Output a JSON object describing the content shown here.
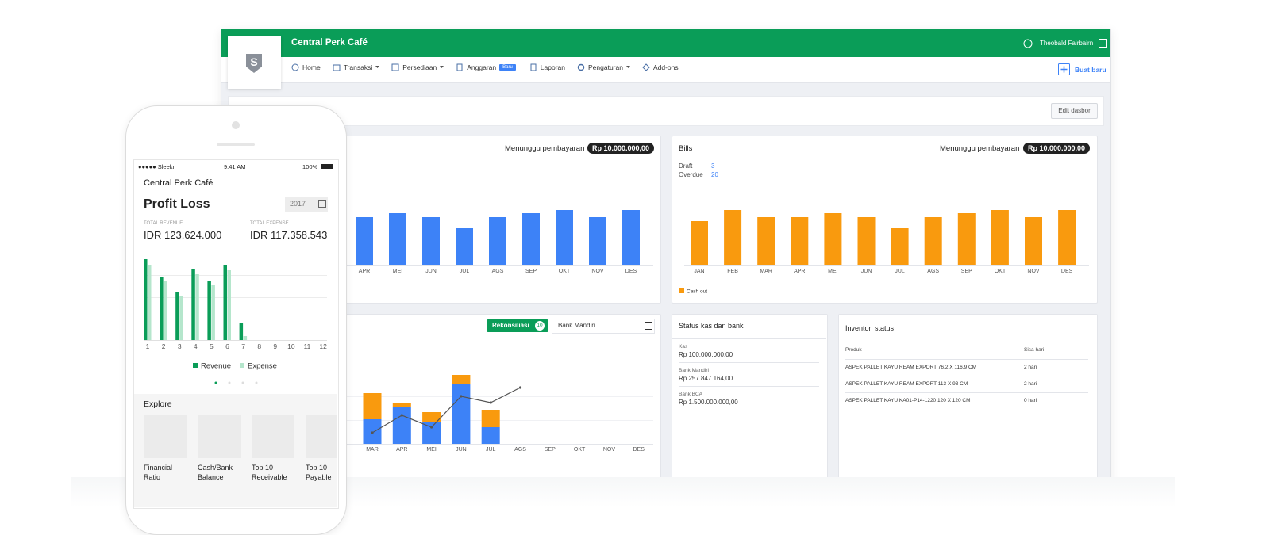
{
  "header": {
    "logo": "S",
    "title": "Central Perk Café",
    "user": "Theobald Fairbairn"
  },
  "nav": {
    "items": [
      "Home",
      "Transaksi",
      "Persediaan",
      "Anggaran",
      "Laporan",
      "Pengaturan",
      "Add-ons"
    ],
    "badge": "Baru",
    "create": "Buat baru"
  },
  "edit_button": "Edit dasbor",
  "invoices": {
    "status_label": "Menunggu pembayaran",
    "amount": "Rp 10.000.000,00"
  },
  "bills": {
    "status_label": "Menunggu pembayaran",
    "amount": "Rp 10.000.000,00",
    "summary": [
      {
        "label": "Draft",
        "value": 3
      },
      {
        "label": "Overdue",
        "value": 20
      }
    ]
  },
  "reconciliation": {
    "button": "Rekonsiliasi",
    "count": 10,
    "bank": "Bank Mandiri"
  },
  "cash_status": {
    "title": "Status kas dan bank",
    "accounts": [
      {
        "name": "Kas",
        "amount": "Rp 100.000.000,00"
      },
      {
        "name": "Bank Mandiri",
        "amount": "Rp 257.847.164,00"
      },
      {
        "name": "Bank BCA",
        "amount": "Rp 1.500.000.000,00"
      }
    ]
  },
  "inventory": {
    "title": "Inventori status",
    "columns": [
      "Produk",
      "Sisa hari"
    ],
    "rows": [
      [
        "ASPEK PALLET KAYU REAM EXPORT 76.2 X 116.9 CM",
        "2 hari"
      ],
      [
        "ASPEK PALLET KAYU REAM EXPORT 113 X 93 CM",
        "2 hari"
      ],
      [
        "ASPEK PALLET KAYU KA01-P14-1220 120 X 120 CM",
        "0 hari"
      ]
    ]
  },
  "phone": {
    "carrier": "●●●●● Sleekr",
    "time": "9:41 AM",
    "battery": "100%",
    "company": "Central Perk Café",
    "year": "2017",
    "revenue": {
      "label": "TOTAL REVENUE",
      "value": "IDR 123.624.000"
    },
    "expense": {
      "label": "TOTAL EXPENSE",
      "value": "IDR 117.358.543"
    },
    "explore": {
      "title": "Explore",
      "items": [
        "Financial Ratio",
        "Cash/Bank Balance",
        "Top 10 Receivable",
        "Top 10 Payable"
      ]
    }
  },
  "chart_data": [
    {
      "type": "bar",
      "categories": [
        "APR",
        "MEI",
        "JUN",
        "JUL",
        "AGS",
        "SEP",
        "OKT",
        "NOV",
        "DES"
      ],
      "series": [
        {
          "color": "#3d82f7",
          "values": [
            60,
            65,
            60,
            46,
            60,
            65,
            69,
            60,
            69
          ]
        }
      ]
    },
    {
      "type": "bar",
      "title": "Bills",
      "categories": [
        "JAN",
        "FEB",
        "MAR",
        "APR",
        "MEI",
        "JUN",
        "JUL",
        "AGS",
        "SEP",
        "OKT",
        "NOV",
        "DES"
      ],
      "series": [
        {
          "name": "Cash out",
          "color": "#f99a0e",
          "values": [
            55,
            69,
            60,
            60,
            65,
            60,
            46,
            60,
            65,
            69,
            60,
            69
          ]
        }
      ]
    },
    {
      "type": "stacked_bar_line",
      "categories": [
        "MAR",
        "APR",
        "MEI",
        "JUN",
        "JUL",
        "AGS",
        "SEP",
        "OKT",
        "NOV",
        "DES"
      ],
      "series": [
        {
          "color": "#3d82f7",
          "values": [
            31,
            46,
            28,
            75,
            21,
            null,
            null,
            null,
            null,
            null
          ]
        },
        {
          "color": "#f99a0e",
          "values": [
            33,
            6,
            12,
            12,
            22,
            null,
            null,
            null,
            null,
            null
          ]
        },
        {
          "type": "line",
          "color": "#555555",
          "values": [
            14,
            36,
            21,
            60,
            52,
            71,
            null,
            null,
            null,
            null
          ]
        }
      ]
    },
    {
      "type": "grouped_bar",
      "title": "Profit Loss",
      "categories": [
        "1",
        "2",
        "3",
        "4",
        "5",
        "6",
        "7",
        "8",
        "9",
        "10",
        "11",
        "12"
      ],
      "series": [
        {
          "name": "Revenue",
          "color": "#0a9d58",
          "values": [
            102,
            80,
            60,
            90,
            75,
            95,
            21,
            null,
            null,
            null,
            null,
            null
          ]
        },
        {
          "name": "Expense",
          "color": "#b5e6cc",
          "values": [
            95,
            74,
            55,
            83,
            69,
            88,
            5,
            null,
            null,
            null,
            null,
            null
          ]
        }
      ]
    }
  ]
}
